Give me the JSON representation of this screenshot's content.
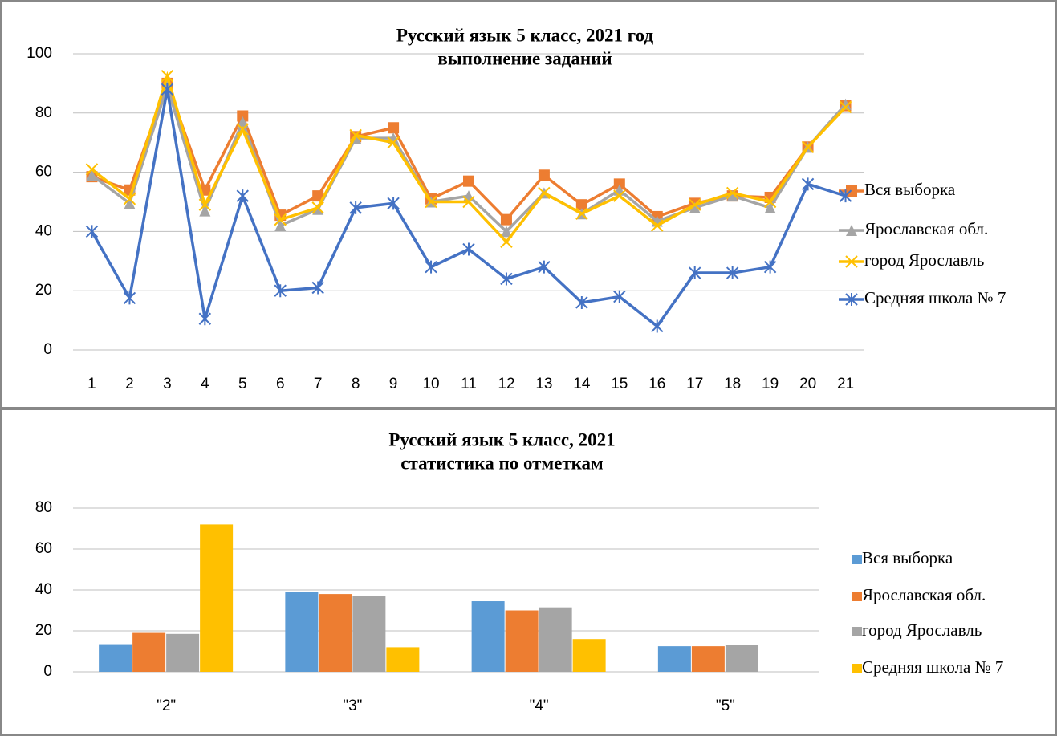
{
  "chart_data": [
    {
      "type": "line",
      "title": "Русский язык 5 класс, 2021 год",
      "subtitle": "выполнение заданий",
      "categories": [
        "1",
        "2",
        "3",
        "4",
        "5",
        "6",
        "7",
        "8",
        "9",
        "10",
        "11",
        "12",
        "13",
        "14",
        "15",
        "16",
        "17",
        "18",
        "19",
        "20",
        "21"
      ],
      "ylim": [
        0,
        100
      ],
      "yticks": [
        0,
        20,
        40,
        60,
        80,
        100
      ],
      "grid": true,
      "series": [
        {
          "name": "Вся выборка",
          "color": "#ed7d31",
          "marker": "square",
          "values": [
            58.5,
            54,
            90,
            54,
            79,
            45.5,
            52,
            72,
            75,
            51,
            57,
            44,
            59,
            49,
            56,
            45,
            49.5,
            52,
            51.5,
            68.5,
            82.5
          ]
        },
        {
          "name": "Ярославская обл.",
          "color": "#a5a5a5",
          "marker": "triangle",
          "values": [
            59,
            49.5,
            89,
            47,
            77,
            42,
            47.5,
            71.5,
            71.5,
            50,
            52,
            40,
            53,
            46,
            54,
            43.5,
            48,
            52,
            48,
            68.5,
            83
          ]
        },
        {
          "name": "город Ярославль",
          "color": "#ffc000",
          "marker": "x",
          "values": [
            61,
            51,
            92.5,
            49,
            74.5,
            44,
            48,
            72.5,
            70,
            50,
            50,
            36.5,
            53,
            46,
            52,
            42,
            49,
            53,
            50,
            68.5,
            82
          ]
        },
        {
          "name": "Средняя школа № 7",
          "color": "#4472c4",
          "marker": "asterisk",
          "values": [
            40,
            17.5,
            88,
            10.5,
            52,
            20,
            21,
            48,
            49.5,
            28,
            34,
            24,
            28,
            16,
            18,
            8,
            26,
            26,
            28,
            56,
            52
          ]
        }
      ]
    },
    {
      "type": "bar",
      "title": "Русский язык 5 класс, 2021",
      "subtitle": "статистика по отметкам",
      "categories": [
        "\"2\"",
        "\"3\"",
        "\"4\"",
        "\"5\""
      ],
      "ylim": [
        0,
        80
      ],
      "yticks": [
        0,
        20,
        40,
        60,
        80
      ],
      "grid": true,
      "series": [
        {
          "name": "Вся выборка",
          "color": "#5b9bd5",
          "values": [
            13.5,
            39,
            34.5,
            12.5
          ]
        },
        {
          "name": "Ярославская обл.",
          "color": "#ed7d31",
          "values": [
            19,
            38,
            30,
            12.5
          ]
        },
        {
          "name": "город Ярославль",
          "color": "#a5a5a5",
          "values": [
            18.5,
            37,
            31.5,
            13
          ]
        },
        {
          "name": "Средняя школа № 7",
          "color": "#ffc000",
          "values": [
            72,
            12,
            16,
            0
          ]
        }
      ]
    }
  ]
}
